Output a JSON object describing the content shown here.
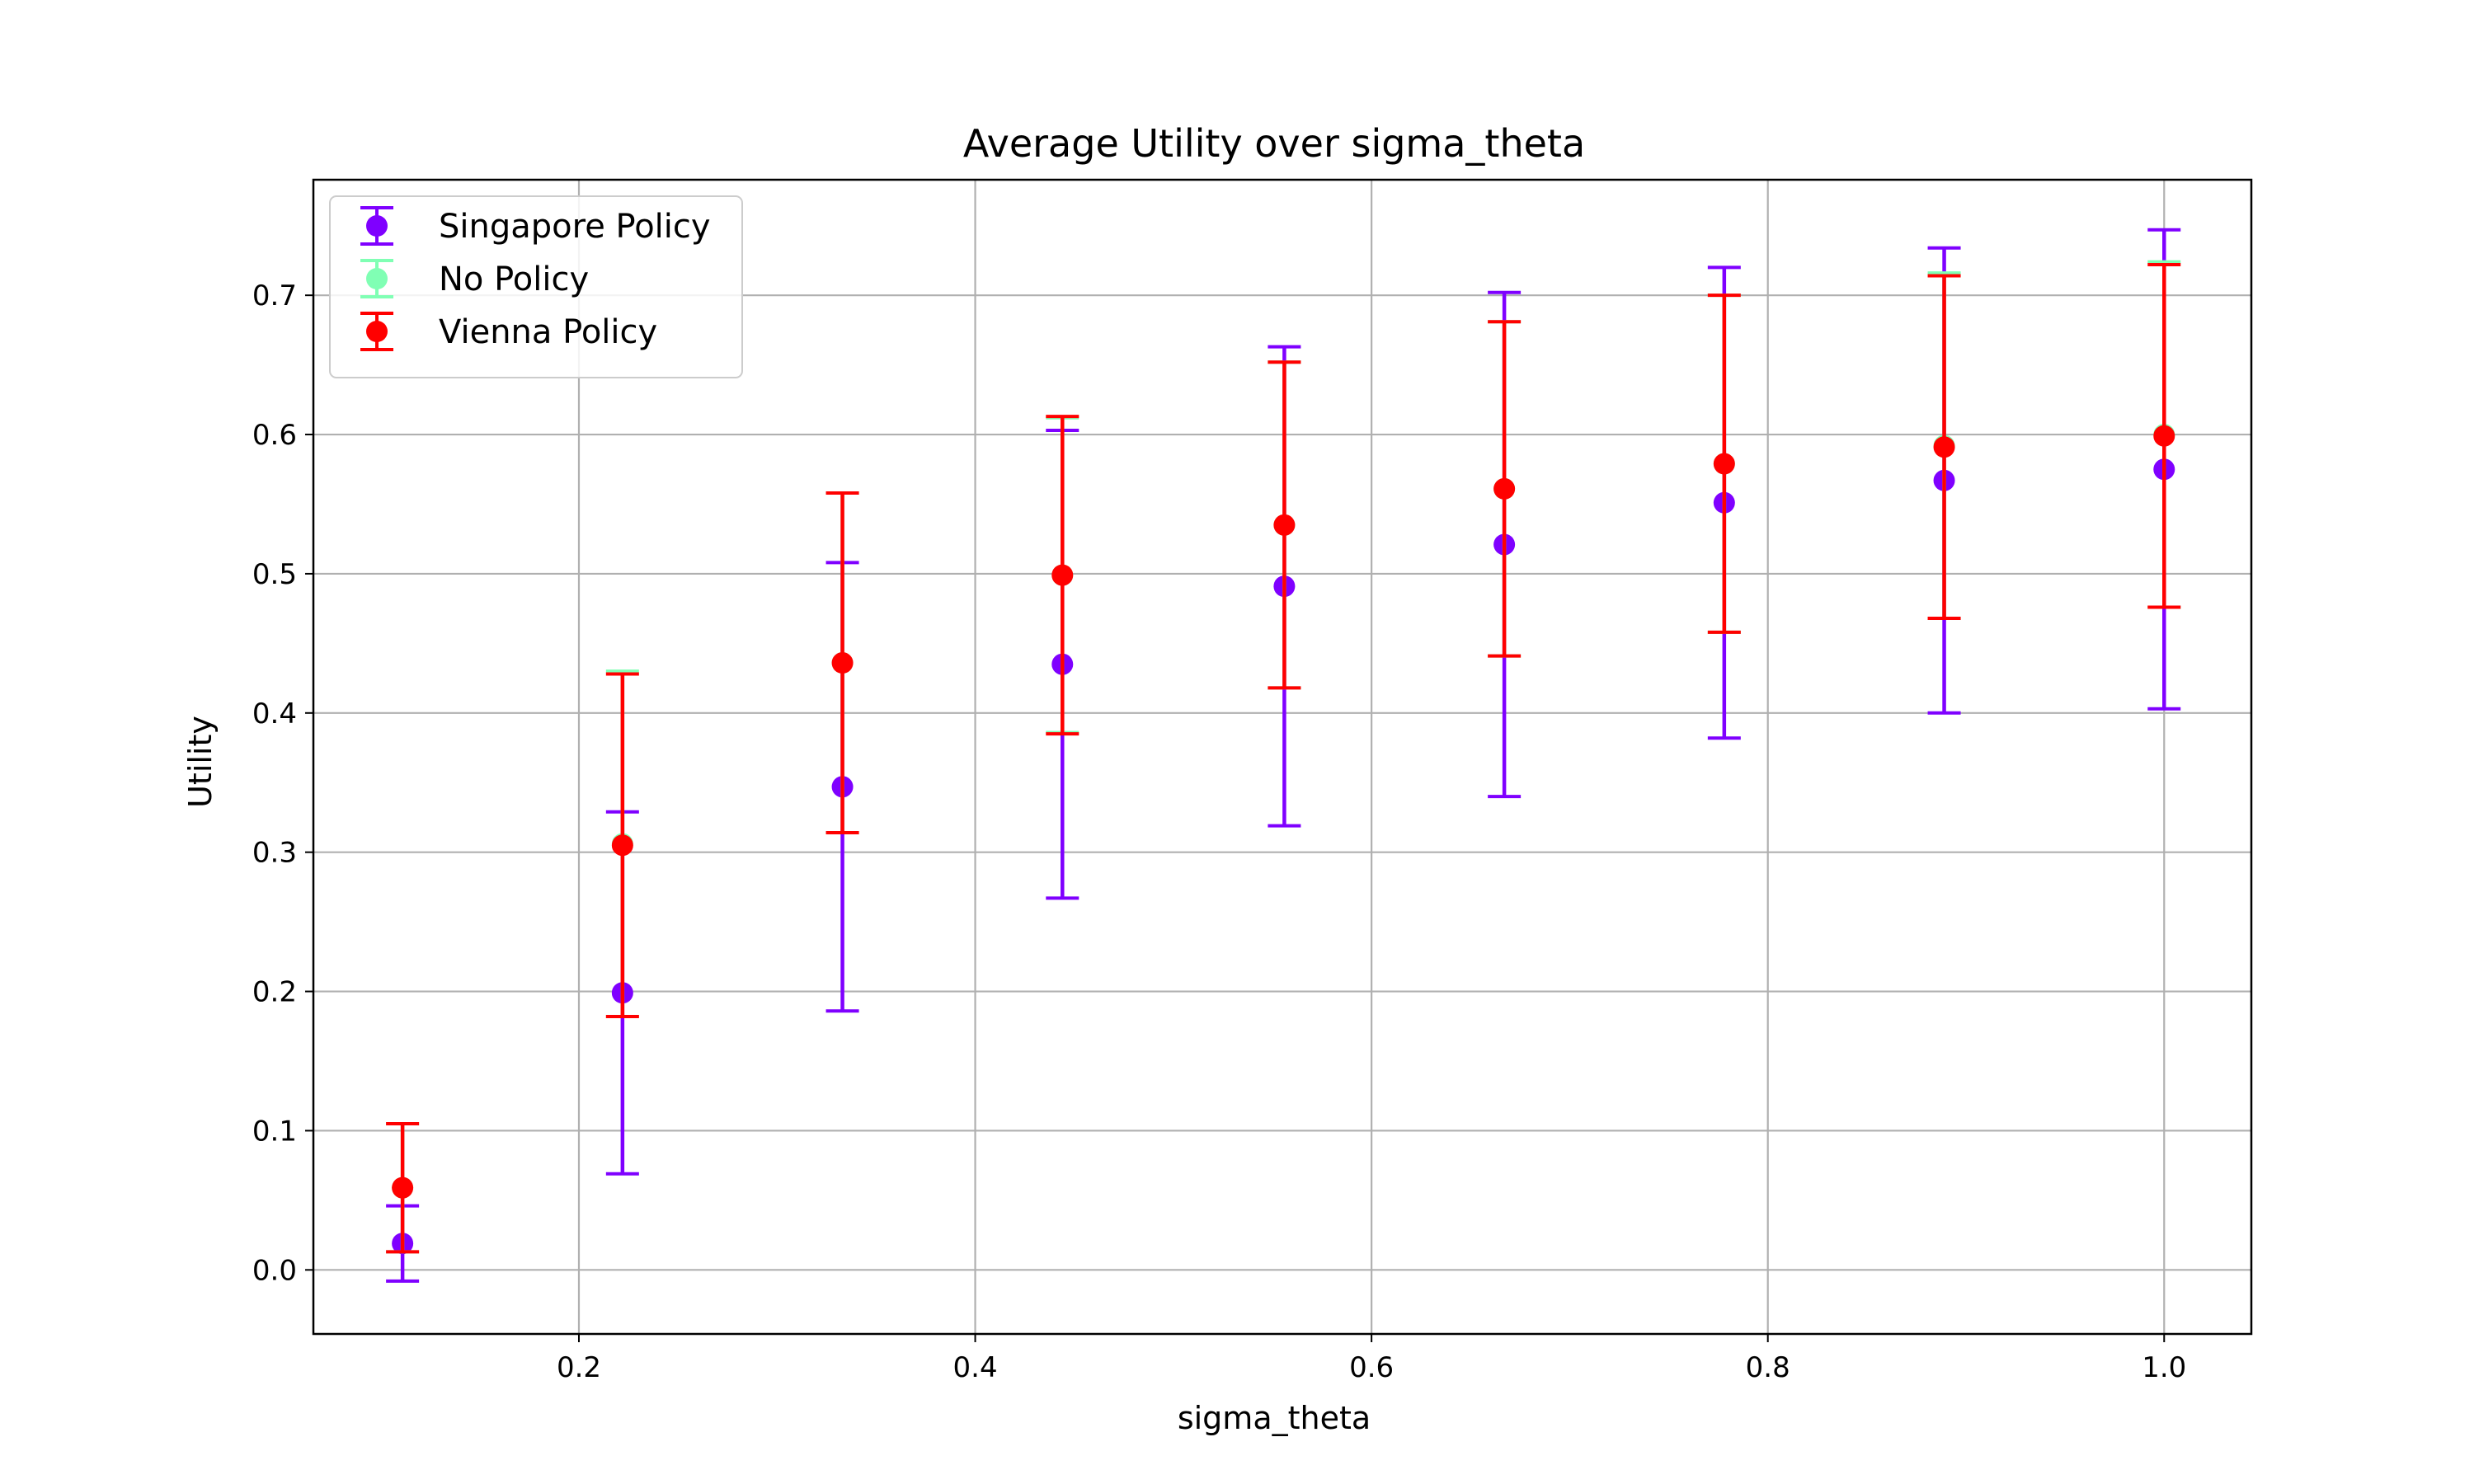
{
  "chart_data": {
    "type": "scatter",
    "title": "Average Utility over sigma_theta",
    "xlabel": "sigma_theta",
    "ylabel": "Utility",
    "xlim": [
      0.066,
      1.044
    ],
    "ylim": [
      -0.046,
      0.783
    ],
    "xticks": [
      0.2,
      0.4,
      0.6,
      0.8,
      1.0
    ],
    "xtick_labels": [
      "0.2",
      "0.4",
      "0.6",
      "0.8",
      "1.0"
    ],
    "yticks": [
      0.0,
      0.1,
      0.2,
      0.3,
      0.4,
      0.5,
      0.6,
      0.7
    ],
    "ytick_labels": [
      "0.0",
      "0.1",
      "0.2",
      "0.3",
      "0.4",
      "0.5",
      "0.6",
      "0.7"
    ],
    "grid": true,
    "legend_position": "top-left",
    "x": [
      0.111,
      0.222,
      0.333,
      0.444,
      0.556,
      0.667,
      0.778,
      0.889,
      1.0
    ],
    "series": [
      {
        "name": "Singapore Policy",
        "color": "#7f00ff",
        "y": [
          0.019,
          0.199,
          0.347,
          0.435,
          0.491,
          0.521,
          0.551,
          0.567,
          0.575
        ],
        "yerr": [
          0.027,
          0.13,
          0.161,
          0.168,
          0.172,
          0.181,
          0.169,
          0.167,
          0.172
        ]
      },
      {
        "name": "No Policy",
        "color": "#80ffb4",
        "y": [
          0.059,
          0.306,
          0.436,
          0.499,
          0.535,
          0.561,
          0.579,
          0.592,
          0.6
        ],
        "yerr": [
          0.046,
          0.124,
          0.122,
          0.113,
          0.117,
          0.12,
          0.121,
          0.124,
          0.124
        ]
      },
      {
        "name": "Vienna Policy",
        "color": "#ff0000",
        "y": [
          0.059,
          0.305,
          0.436,
          0.499,
          0.535,
          0.561,
          0.579,
          0.591,
          0.599
        ],
        "yerr": [
          0.046,
          0.123,
          0.122,
          0.114,
          0.117,
          0.12,
          0.121,
          0.123,
          0.123
        ]
      }
    ]
  }
}
